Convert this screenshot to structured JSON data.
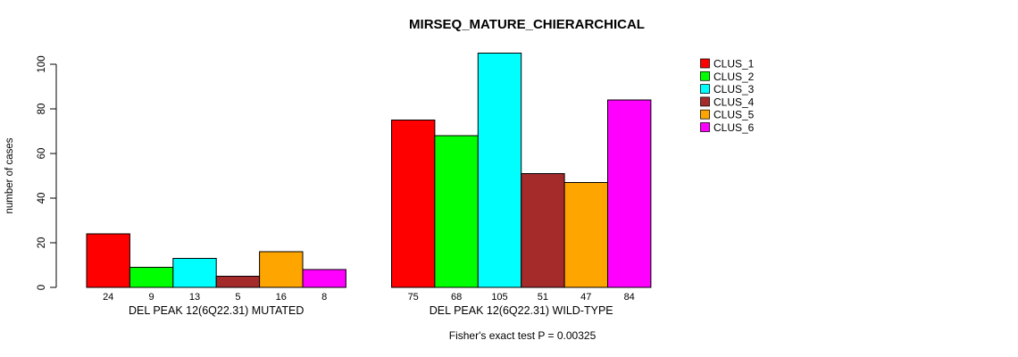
{
  "chart_data": {
    "type": "bar",
    "title": "MIRSEQ_MATURE_CHIERARCHICAL",
    "ylabel": "number of cases",
    "xlabel": "",
    "yticks": [
      0,
      20,
      40,
      60,
      80,
      100
    ],
    "ylim": [
      0,
      105
    ],
    "grid": false,
    "legend_position": "right",
    "series_names": [
      "CLUS_1",
      "CLUS_2",
      "CLUS_3",
      "CLUS_4",
      "CLUS_5",
      "CLUS_6"
    ],
    "colors": [
      "#ff0000",
      "#00ff00",
      "#00ffff",
      "#a52a2a",
      "#ffa500",
      "#ff00ff"
    ],
    "categories": [
      "DEL PEAK 12(6Q22.31) MUTATED",
      "DEL PEAK 12(6Q22.31) WILD-TYPE"
    ],
    "groups": [
      {
        "label": "DEL PEAK 12(6Q22.31) MUTATED",
        "values": [
          24,
          9,
          13,
          5,
          16,
          8
        ]
      },
      {
        "label": "DEL PEAK 12(6Q22.31) WILD-TYPE",
        "values": [
          75,
          68,
          105,
          51,
          47,
          84
        ]
      }
    ],
    "bar_value_labels_shown": true,
    "annotation": "Fisher's exact test P = 0.00325",
    "axis_color": "#000000",
    "background_color": "#ffffff"
  }
}
